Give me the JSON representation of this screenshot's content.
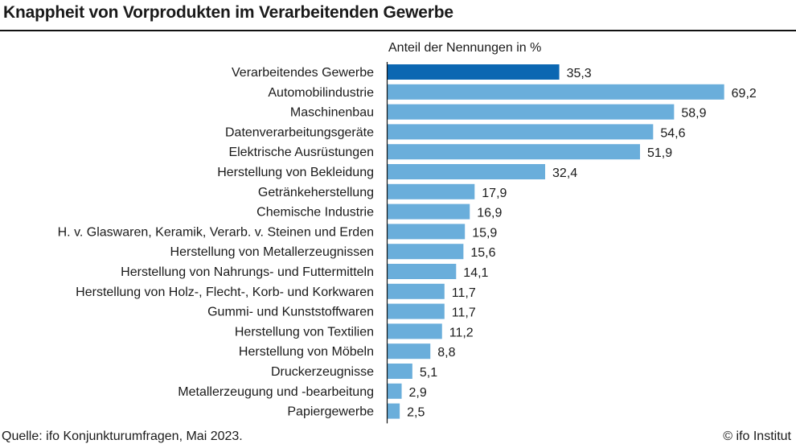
{
  "title": "Knappheit von Vorprodukten im Verarbeitenden Gewerbe",
  "source": "Quelle: ifo Konjunkturumfragen, Mai 2023.",
  "credit": "© ifo Institut",
  "chart_data": {
    "type": "bar",
    "orientation": "horizontal",
    "subtitle": "Anteil der Nennungen in %",
    "categories": [
      "Verarbeitendes Gewerbe",
      "Automobilindustrie",
      "Maschinenbau",
      "Datenverarbeitungsgeräte",
      "Elektrische Ausrüstungen",
      "Herstellung von Bekleidung",
      "Getränkeherstellung",
      "Chemische Industrie",
      "H. v. Glaswaren, Keramik, Verarb. v. Steinen und Erden",
      "Herstellung von Metallerzeugnissen",
      "Herstellung von Nahrungs- und Futtermitteln",
      "Herstellung von Holz-, Flecht-, Korb- und Korkwaren",
      "Gummi- und Kunststoffwaren",
      "Herstellung von Textilien",
      "Herstellung von Möbeln",
      "Druckerzeugnisse",
      "Metallerzeugung und -bearbeitung",
      "Papiergewerbe"
    ],
    "values": [
      35.3,
      69.2,
      58.9,
      54.6,
      51.9,
      32.4,
      17.9,
      16.9,
      15.9,
      15.6,
      14.1,
      11.7,
      11.7,
      11.2,
      8.8,
      5.1,
      2.9,
      2.5
    ],
    "value_labels": [
      "35,3",
      "69,2",
      "58,9",
      "54,6",
      "51,9",
      "32,4",
      "17,9",
      "16,9",
      "15,9",
      "15,6",
      "14,1",
      "11,7",
      "11,7",
      "11,2",
      "8,8",
      "5,1",
      "2,9",
      "2,5"
    ],
    "xlim": [
      0,
      75
    ],
    "grid": false,
    "legend": "none",
    "colors": {
      "highlight": "#0b67b2",
      "default": "#6aaedb"
    },
    "highlight_index": 0
  }
}
